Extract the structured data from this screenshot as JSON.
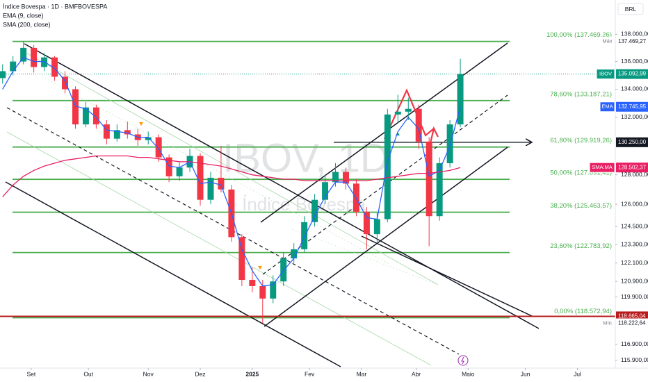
{
  "header": {
    "title": "Índice Bovespa · 1D · BMFBOVESPA",
    "indicators": [
      "EMA (9, close)",
      "SMA (200, close)"
    ],
    "currency": "BRL"
  },
  "chart_data": {
    "type": "candlestick",
    "watermark": {
      "symbol": "IBOV, 1D",
      "name": "Índice Bovespa"
    },
    "log_scale": true,
    "up_color": "#089981",
    "down_color": "#f23645",
    "x": [
      -11,
      -7,
      -3,
      1,
      5,
      9,
      13,
      17,
      21,
      25,
      29,
      33,
      37,
      41,
      45,
      49,
      53,
      57,
      61,
      65,
      69,
      73,
      77,
      81,
      85,
      89,
      93,
      97,
      101,
      105,
      109,
      113,
      117,
      121,
      125,
      129,
      133,
      137,
      141,
      145,
      149,
      153,
      157,
      161,
      165
    ],
    "open": [
      134800,
      135300,
      136000,
      137000,
      135600,
      136300,
      134900,
      134000,
      131500,
      132700,
      131500,
      130500,
      131100,
      130800,
      130400,
      130600,
      129200,
      127900,
      128500,
      129300,
      126300,
      127800,
      127000,
      123800,
      121000,
      120600,
      119800,
      120900,
      122400,
      123000,
      124800,
      126300,
      127500,
      128200,
      127400,
      125500,
      124000,
      125000,
      132200,
      132400,
      132600,
      130300,
      125200,
      128800,
      131500
    ],
    "high": [
      135800,
      136400,
      137469.27,
      137200,
      136600,
      136400,
      135300,
      134200,
      133100,
      132900,
      131800,
      131500,
      131700,
      131200,
      131000,
      130800,
      129400,
      128900,
      129800,
      129500,
      128200,
      130000,
      127300,
      124000,
      121800,
      121000,
      121300,
      122800,
      123400,
      125200,
      126700,
      128000,
      128800,
      128500,
      127700,
      125800,
      125400,
      132600,
      133600,
      133400,
      132900,
      130600,
      129200,
      131800,
      136200
    ],
    "low": [
      134400,
      135000,
      135800,
      135200,
      135300,
      134600,
      133700,
      131200,
      131300,
      131200,
      130100,
      130300,
      130500,
      130000,
      130100,
      128900,
      127500,
      127600,
      128200,
      125900,
      126000,
      126800,
      123500,
      120600,
      120200,
      118222.64,
      119500,
      120600,
      122100,
      122800,
      124500,
      126000,
      127200,
      127000,
      125200,
      123000,
      123500,
      124800,
      131600,
      131800,
      129800,
      123200,
      124900,
      128500,
      131300
    ],
    "close": [
      135300,
      136000,
      137000,
      135600,
      136300,
      134900,
      134000,
      131500,
      132700,
      131500,
      130500,
      131100,
      130800,
      130400,
      130600,
      129200,
      127900,
      128500,
      129300,
      126300,
      127800,
      127000,
      123800,
      121000,
      120600,
      119800,
      120900,
      122400,
      123000,
      124800,
      126300,
      127500,
      128200,
      127400,
      125500,
      124000,
      125000,
      132200,
      132400,
      132600,
      130300,
      125200,
      128800,
      131500,
      135092.99
    ],
    "xlim": [
      -12,
      224.6
    ],
    "xticks": [
      {
        "value": 0,
        "label": "Set"
      },
      {
        "value": 22,
        "label": "Out"
      },
      {
        "value": 45,
        "label": "Nov"
      },
      {
        "value": 65,
        "label": "Dez"
      },
      {
        "value": 85,
        "label": "2025"
      },
      {
        "value": 107,
        "label": "Fev"
      },
      {
        "value": 127,
        "label": "Mar"
      },
      {
        "value": 148,
        "label": "Abr"
      },
      {
        "value": 168,
        "label": "Maio"
      },
      {
        "value": 190,
        "label": "Jun"
      },
      {
        "value": 210,
        "label": "Jul"
      }
    ],
    "ylim": [
      115422,
      140553
    ],
    "yticks": [
      {
        "value": 138000,
        "label": "138.000,00"
      },
      {
        "value": 136000,
        "label": "136.000,00"
      },
      {
        "value": 134000,
        "label": "134.000,00"
      },
      {
        "value": 132000,
        "label": "132.000,00"
      },
      {
        "value": 128000,
        "label": "128.000,00"
      },
      {
        "value": 126000,
        "label": "126.000,00"
      },
      {
        "value": 124500,
        "label": "124.500,00"
      },
      {
        "value": 123300,
        "label": "123.300,00"
      },
      {
        "value": 122100,
        "label": "122.100,00"
      },
      {
        "value": 120900,
        "label": "120.900,00"
      },
      {
        "value": 119900,
        "label": "119.900,00"
      },
      {
        "value": 116900,
        "label": "116.900,00"
      },
      {
        "value": 115900,
        "label": "115.900,00"
      }
    ],
    "overlays": [
      {
        "name": "EMA",
        "color": "#2962ff",
        "values": [
          134000,
          135300,
          136300,
          136000,
          136000,
          135500,
          134600,
          132800,
          132600,
          132000,
          131100,
          131000,
          130900,
          130600,
          130600,
          129800,
          128600,
          128500,
          128900,
          127400,
          127500,
          127300,
          125400,
          123000,
          121600,
          120600,
          120700,
          121600,
          122400,
          123800,
          125200,
          126500,
          127500,
          127500,
          126400,
          125100,
          125000,
          128900,
          131000,
          132000,
          131200,
          127900,
          128300,
          130000,
          132745.95
        ]
      },
      {
        "name": "SMA:MA",
        "color": "#e91e63",
        "values": [
          126500,
          127300,
          127900,
          128300,
          128600,
          128800,
          129000,
          129100,
          129200,
          129300,
          129300,
          129300,
          129300,
          129200,
          129200,
          129100,
          129000,
          128900,
          128900,
          128800,
          128700,
          128600,
          128400,
          128200,
          128000,
          127900,
          127800,
          127700,
          127700,
          127600,
          127600,
          127600,
          127600,
          127600,
          127600,
          127600,
          127700,
          127800,
          127900,
          128000,
          128100,
          128100,
          128200,
          128300,
          128502.37
        ]
      }
    ],
    "fib_color": "#4caf50",
    "fib_levels": [
      {
        "value": 137469.26,
        "label": "100,00% (137.469,26)"
      },
      {
        "value": 133187.21,
        "label": "78,60% (133.187,21)"
      },
      {
        "value": 129919.26,
        "label": "61,80% (129.919,26)"
      },
      {
        "value": 127691.41,
        "label": "50,00% (127.691,41)"
      },
      {
        "value": 125463.57,
        "label": "38,20% (125.463,57)"
      },
      {
        "value": 122783.92,
        "label": "23,60% (122.783,92)"
      },
      {
        "value": 118572.94,
        "label": "0,00% (118.572,94)"
      }
    ],
    "price_badges": [
      {
        "tag": "Máx",
        "value": 137469.27,
        "value_label": "137.469,27",
        "color": "#ffffff"
      },
      {
        "tag": "IBOV",
        "value": 135092.99,
        "value_label": "135.092,99",
        "color": "#089981",
        "line": "dotted"
      },
      {
        "tag": "EMA",
        "value": 132745.95,
        "value_label": "132.745,95",
        "color": "#2962ff"
      },
      {
        "value": 130250,
        "value_label": "130.250,00",
        "color": "#131722",
        "line": "arrow"
      },
      {
        "tag": "SMA:MA",
        "value": 128502.37,
        "value_label": "128.502,37",
        "color": "#e91e63"
      },
      {
        "value": 118665.04,
        "value_label": "118.665,04",
        "color": "#b71c1c",
        "line": "solid"
      },
      {
        "tag": "Mín",
        "value": 118222.64,
        "value_label": "118.222,64",
        "color": "#ffffff"
      }
    ]
  }
}
